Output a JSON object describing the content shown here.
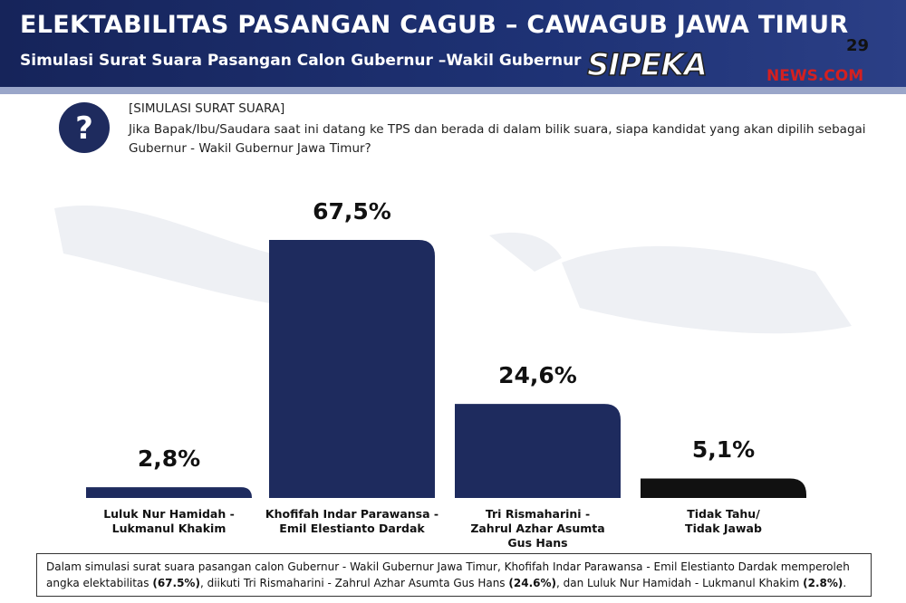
{
  "header": {
    "title": "ELEKTABILITAS PASANGAN CAGUB – CAWAGUB JAWA TIMUR",
    "subtitle": "Simulasi Surat Suara Pasangan Calon Gubernur –Wakil Gubernur",
    "page_number": "29",
    "logo": "SIPEKA",
    "logo_domain": "NEWS.COM"
  },
  "question": {
    "label": "[SIMULASI SURAT SUARA]",
    "text": "Jika Bapak/Ibu/Saudara saat ini datang ke TPS dan berada di dalam bilik suara, siapa kandidat yang akan dipilih sebagai Gubernur - Wakil Gubernur Jawa Timur?"
  },
  "chart_data": {
    "type": "bar",
    "categories": [
      "Luluk Nur Hamidah -\nLukmanul Khakim",
      "Khofifah Indar Parawansa -\nEmil Elestianto Dardak",
      "Tri Rismaharini -\nZahrul Azhar Asumta\nGus Hans",
      "Tidak Tahu/\nTidak Jawab"
    ],
    "values": [
      2.8,
      67.5,
      24.6,
      5.1
    ],
    "value_labels": [
      "2,8%",
      "67,5%",
      "24,6%",
      "5,1%"
    ],
    "colors": [
      "#1e2b5e",
      "#1e2b5e",
      "#1e2b5e",
      "#111111"
    ]
  },
  "note": [
    "Dalam simulasi surat suara pasangan calon Gubernur - Wakil Gubernur Jawa Timur, Khofifah Indar Parawansa - Emil Elestianto Dardak memperoleh angka elektabilitas ",
    "(67.5%)",
    ", diikuti Tri Rismaharini - Zahrul Azhar Asumta Gus Hans ",
    "(24.6%)",
    ", dan Luluk Nur Hamidah - Lukmanul Khakim ",
    "(2.8%)",
    "."
  ]
}
